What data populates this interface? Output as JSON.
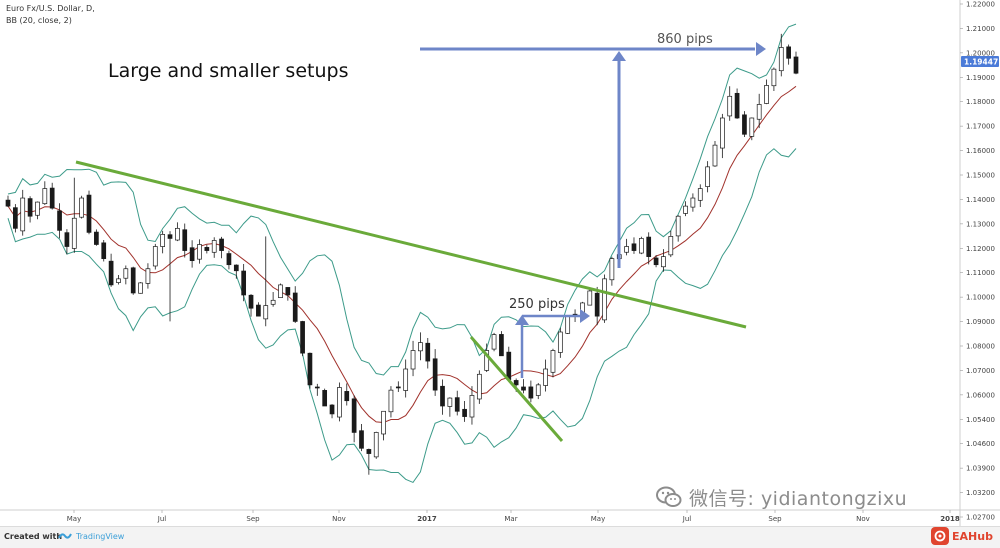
{
  "legend": {
    "symbol": "Euro Fx/U.S. Dollar, D,",
    "indicator": "BB (20, close, 2)"
  },
  "branding": {
    "created_with": "Created with",
    "platform": "TradingView",
    "watermark": "微信号: yidiantongzixu",
    "hub": "EAHub"
  },
  "colors": {
    "trendline": "#6aaa3a",
    "arrow": "#6e86c8",
    "band": "#3d9b8a",
    "middle": "#a1322c",
    "price_label_bg": "#4b7bd8",
    "candle": "#1a1a1a"
  },
  "chart_data": {
    "type": "candlestick",
    "title": "Large and smaller setups",
    "y_axis": {
      "position": "right",
      "ylim": [
        1.027,
        1.22
      ],
      "ticks": [
        "1.22000",
        "1.21000",
        "1.20000",
        "1.19000",
        "1.18000",
        "1.17000",
        "1.16000",
        "1.15000",
        "1.14000",
        "1.13000",
        "1.12000",
        "1.11000",
        "1.10000",
        "1.09000",
        "1.08000",
        "1.07000",
        "1.06000",
        "1.05400",
        "1.04600",
        "1.03900",
        "1.03200",
        "1.02700"
      ],
      "current_price": "1.19447"
    },
    "x_axis": {
      "ticks": [
        "May",
        "Jul",
        "Sep",
        "Nov",
        "2017",
        "Mar",
        "May",
        "Jul",
        "Sep",
        "Nov",
        "2018"
      ]
    },
    "annotations": [
      {
        "label": "860 pips",
        "type": "arrow-measure"
      },
      {
        "label": "250 pips",
        "type": "arrow-measure"
      }
    ],
    "trendlines": [
      {
        "name": "large-downtrend",
        "from": [
          "May 2016",
          1.153
        ],
        "to": [
          "Jul 2017",
          1.087
        ]
      },
      {
        "name": "small-downtrend",
        "from": [
          "Feb 2017",
          1.084
        ],
        "to": [
          "Apr 2017",
          1.047
        ]
      }
    ],
    "series": [
      {
        "name": "close",
        "values": [
          1.144,
          1.133,
          1.148,
          1.139,
          1.146,
          1.152,
          1.143,
          1.132,
          1.124,
          1.138,
          1.148,
          1.131,
          1.125,
          1.118,
          1.105,
          1.108,
          1.113,
          1.101,
          1.106,
          1.113,
          1.124,
          1.13,
          1.128,
          1.133,
          1.122,
          1.117,
          1.125,
          1.122,
          1.127,
          1.122,
          1.115,
          1.112,
          1.1,
          1.095,
          1.092,
          1.096,
          1.098,
          1.105,
          1.1,
          1.09,
          1.078,
          1.066,
          1.065,
          1.058,
          1.055,
          1.065,
          1.06,
          1.048,
          1.042,
          1.04,
          1.048,
          1.056,
          1.064,
          1.065,
          1.072,
          1.079,
          1.082,
          1.075,
          1.064,
          1.058,
          1.061,
          1.056,
          1.054,
          1.062,
          1.07,
          1.079,
          1.085,
          1.077,
          1.068,
          1.066,
          1.064,
          1.061,
          1.066,
          1.072,
          1.079,
          1.086,
          1.092,
          1.092,
          1.097,
          1.102,
          1.092,
          1.108,
          1.118,
          1.12,
          1.124,
          1.122,
          1.128,
          1.119,
          1.115,
          1.119,
          1.129,
          1.139,
          1.144,
          1.148,
          1.152,
          1.16,
          1.168,
          1.178,
          1.186,
          1.178,
          1.172,
          1.178,
          1.183,
          1.19,
          1.196,
          1.204,
          1.2,
          1.1945
        ]
      }
    ]
  }
}
